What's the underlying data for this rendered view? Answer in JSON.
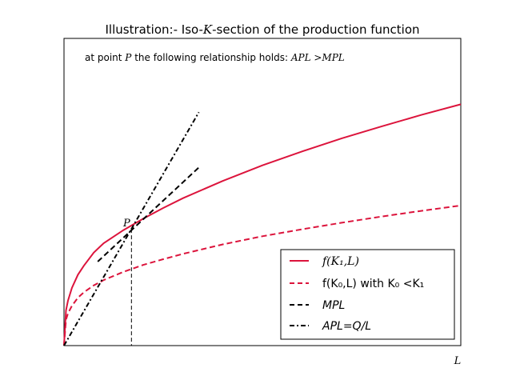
{
  "chart_data": {
    "type": "line",
    "title": "Illustration:- Iso-K-section of the production function",
    "title_parts": {
      "prefix": "Illustration:- Iso-",
      "var": "K",
      "suffix": "-section of the production function"
    },
    "xlabel": "L",
    "ylabel": "",
    "xlim": [
      0,
      10
    ],
    "ylim": [
      0,
      7.5
    ],
    "grid": false,
    "ticks": false,
    "annotation": {
      "prefix": "at point ",
      "point": "P",
      "middle": " the following relationship holds: ",
      "relation": "APL >MPL"
    },
    "point_label": "P",
    "point": {
      "x": 1.7,
      "y": 2.85
    },
    "legend": {
      "placement": "lower-right",
      "entries": [
        {
          "label": "f(K₁,L)",
          "style": "solid",
          "color": "#dc143c"
        },
        {
          "label": "f(K₀,L) with K₀ <K₁",
          "style": "dashed",
          "color": "#dc143c"
        },
        {
          "label": "MPL",
          "style": "dashed",
          "color": "#000000"
        },
        {
          "label": "APL=Q/L",
          "style": "dashdot",
          "color": "#000000"
        }
      ]
    },
    "series": [
      {
        "key": "k1",
        "style": "solid",
        "color": "#dc143c",
        "x": [
          0,
          0.05,
          0.1,
          0.2,
          0.35,
          0.5,
          0.75,
          1,
          1.5,
          2,
          2.5,
          3,
          4,
          5,
          6,
          7,
          8,
          9,
          10
        ],
        "y": [
          0,
          0.86,
          1.1,
          1.41,
          1.73,
          1.95,
          2.27,
          2.5,
          2.82,
          3.1,
          3.36,
          3.6,
          4.02,
          4.4,
          4.74,
          5.06,
          5.35,
          5.63,
          5.89
        ]
      },
      {
        "key": "k0",
        "style": "dashed",
        "color": "#dc143c",
        "x": [
          0,
          0.05,
          0.1,
          0.2,
          0.35,
          0.5,
          0.75,
          1,
          1.5,
          2,
          2.5,
          3,
          4,
          5,
          6,
          7,
          8,
          9,
          10
        ],
        "y": [
          0,
          0.63,
          0.79,
          0.97,
          1.17,
          1.3,
          1.47,
          1.6,
          1.8,
          1.97,
          2.11,
          2.24,
          2.47,
          2.67,
          2.84,
          3.0,
          3.15,
          3.29,
          3.42
        ]
      },
      {
        "key": "mpl",
        "style": "dashed",
        "color": "#000000",
        "x": [
          0.85,
          3.4
        ],
        "y": [
          2.05,
          4.35
        ]
      },
      {
        "key": "apl",
        "style": "dashdot",
        "color": "#000000",
        "x": [
          0,
          3.4
        ],
        "y": [
          0,
          5.7
        ]
      }
    ]
  }
}
